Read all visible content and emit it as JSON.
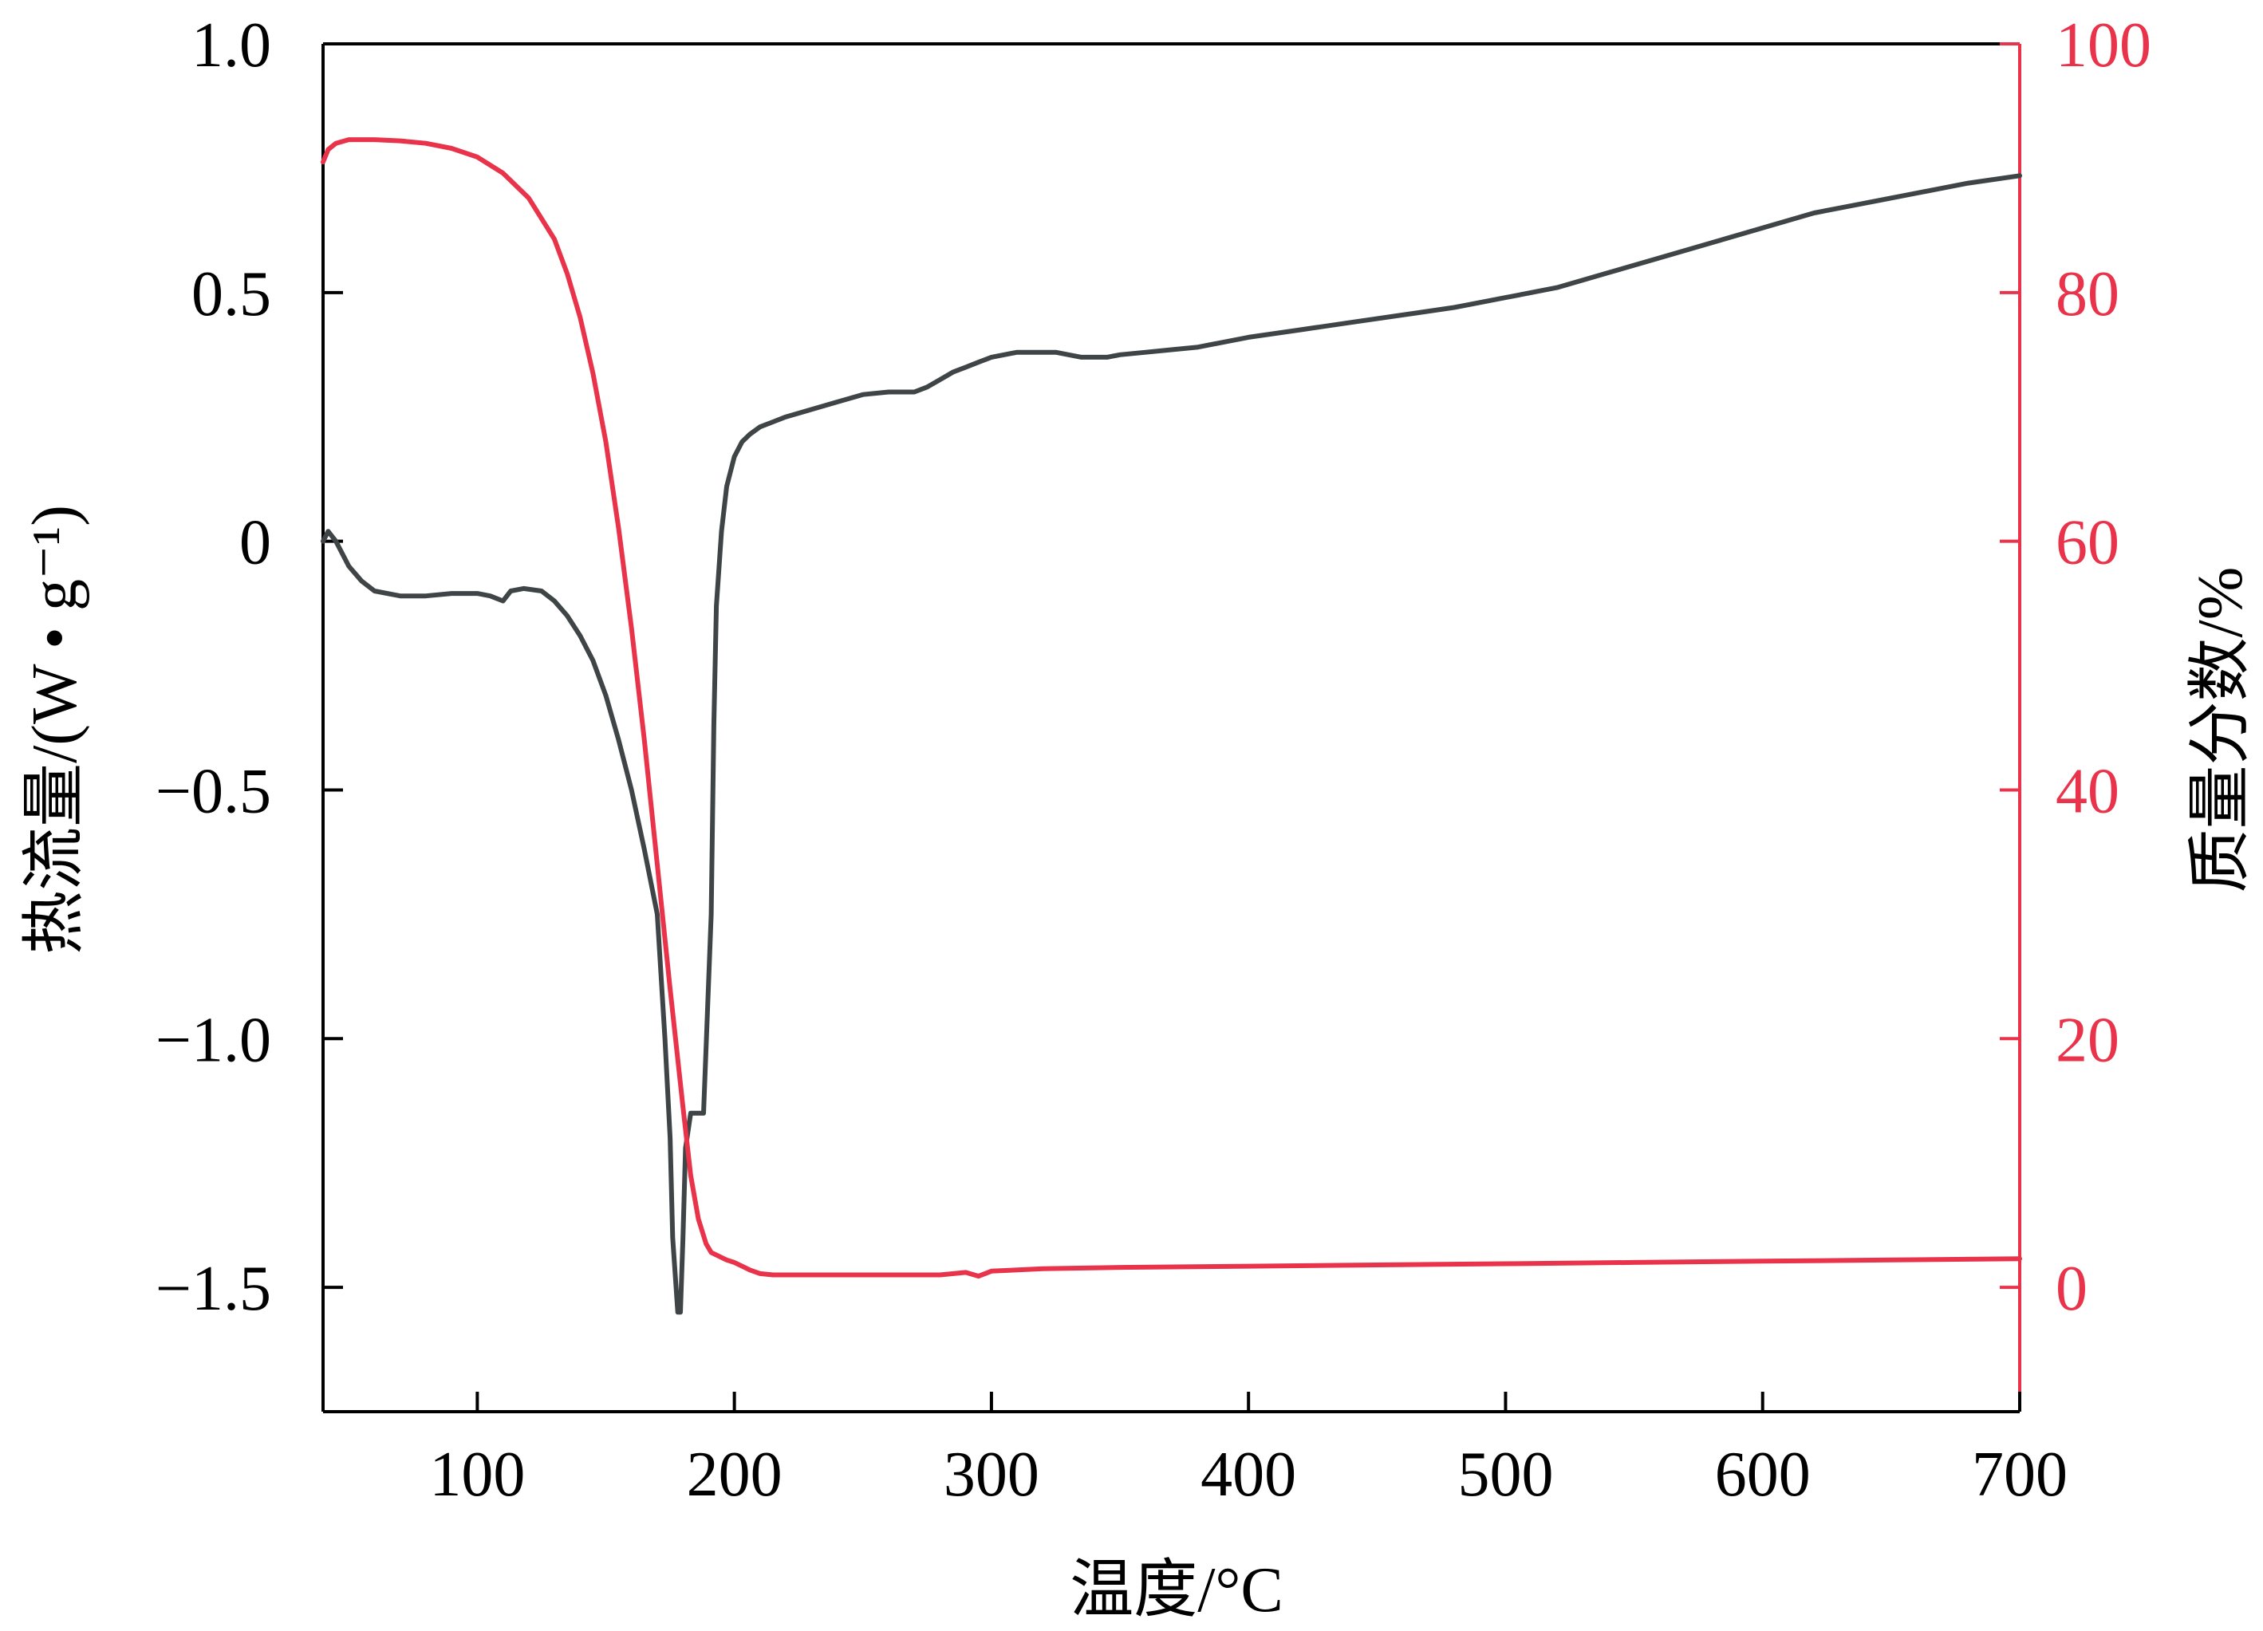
{
  "chart_data": {
    "type": "line",
    "title": "",
    "xlabel": "温度/°C",
    "ylabel_left": "热流量/(W • g⁻¹)",
    "ylabel_right": "质量分数/%",
    "xlim": [
      40,
      700
    ],
    "ylim_left": [
      -1.75,
      1.0
    ],
    "ylim_right": [
      -10,
      100
    ],
    "xticks": [
      100,
      200,
      300,
      400,
      500,
      600,
      700
    ],
    "xtick_labels": [
      "100",
      "200",
      "300",
      "400",
      "500",
      "600",
      "700"
    ],
    "yticks_left": [
      -1.5,
      -1.0,
      -0.5,
      0,
      0.5,
      1.0
    ],
    "ytick_labels_left": [
      "−1.5",
      "−1.0",
      "−0.5",
      "0",
      "0.5",
      "1.0"
    ],
    "yticks_right": [
      0,
      20,
      40,
      60,
      80,
      100
    ],
    "ytick_labels_right": [
      "0",
      "20",
      "40",
      "60",
      "80",
      "100"
    ],
    "grid": false,
    "colors": {
      "heat_flow": "#3f4446",
      "mass_fraction": "#e8334a",
      "axis": "#000000"
    },
    "series": [
      {
        "axis": "left",
        "color": "#3f4446",
        "x": [
          40,
          42,
          45,
          50,
          55,
          60,
          70,
          80,
          90,
          100,
          105,
          110,
          113,
          118,
          125,
          130,
          135,
          140,
          145,
          150,
          155,
          160,
          165,
          170,
          173,
          175,
          176,
          178,
          179,
          180,
          181,
          183,
          185,
          188,
          191,
          192,
          193,
          195,
          197,
          200,
          203,
          206,
          210,
          215,
          220,
          230,
          240,
          250,
          260,
          270,
          275,
          280,
          285,
          290,
          295,
          300,
          310,
          320,
          325,
          330,
          335,
          340,
          345,
          350,
          360,
          370,
          380,
          390,
          400,
          420,
          440,
          460,
          480,
          500,
          520,
          540,
          560,
          580,
          600,
          620,
          640,
          660,
          680,
          700
        ],
        "y": [
          0.0,
          0.02,
          0.0,
          -0.05,
          -0.08,
          -0.1,
          -0.11,
          -0.11,
          -0.105,
          -0.105,
          -0.11,
          -0.12,
          -0.1,
          -0.095,
          -0.1,
          -0.12,
          -0.15,
          -0.19,
          -0.24,
          -0.31,
          -0.4,
          -0.5,
          -0.62,
          -0.75,
          -1.0,
          -1.55,
          -1.55,
          -1.4,
          -1.22,
          -1.15,
          -1.15,
          -1.15,
          -0.75,
          -0.37,
          -0.13,
          0.02,
          0.11,
          0.17,
          0.2,
          0.215,
          0.225,
          0.235,
          0.25,
          0.262,
          0.275,
          0.285,
          0.29,
          0.3,
          0.31,
          0.325,
          0.34,
          0.35,
          0.36,
          0.37,
          0.38,
          0.37,
          0.37,
          0.37,
          0.37,
          0.37,
          0.37,
          0.375,
          0.38,
          0.385,
          0.39,
          0.398,
          0.405,
          0.415,
          0.425,
          0.44,
          0.455,
          0.47,
          0.49,
          0.51,
          0.54,
          0.57,
          0.6,
          0.63,
          0.66,
          0.68,
          0.7,
          0.72,
          0.735,
          0.735
        ],
        "y_fixed": [
          0.0,
          0.02,
          0.0,
          -0.05,
          -0.08,
          -0.1,
          -0.11,
          -0.11,
          -0.105,
          -0.105,
          -0.11,
          -0.12,
          -0.1,
          -0.095,
          -0.1,
          -0.12,
          -0.15,
          -0.19,
          -0.24,
          -0.31,
          -0.4,
          -0.5,
          -0.62,
          -0.75,
          -1.0,
          -1.2,
          -1.4,
          -1.55,
          -1.55,
          -1.4,
          -1.22,
          -1.15,
          -1.15,
          -1.15,
          -0.75,
          -0.37,
          -0.13,
          0.02,
          0.11,
          0.17,
          0.2,
          0.215,
          0.23,
          0.24,
          0.25,
          0.265,
          0.28,
          0.295,
          0.3,
          0.3,
          0.31,
          0.325,
          0.34,
          0.35,
          0.36,
          0.37,
          0.38,
          0.38,
          0.38,
          0.375,
          0.37,
          0.37,
          0.37,
          0.375,
          0.38,
          0.385,
          0.39,
          0.4,
          0.41,
          0.425,
          0.44,
          0.455,
          0.47,
          0.49,
          0.51,
          0.54,
          0.57,
          0.6,
          0.63,
          0.66,
          0.68,
          0.7,
          0.72,
          0.735
        ]
      },
      {
        "axis": "right",
        "color": "#e8334a",
        "x": [
          40,
          42,
          45,
          50,
          60,
          70,
          80,
          90,
          100,
          110,
          120,
          130,
          135,
          140,
          145,
          150,
          155,
          160,
          165,
          170,
          175,
          180,
          183,
          186,
          189,
          191,
          193,
          195,
          197,
          200,
          203,
          206,
          210,
          215,
          220,
          240,
          260,
          280,
          290,
          295,
          300,
          320,
          350,
          400,
          450,
          500,
          550,
          600,
          650,
          700
        ],
        "y": [
          90.5,
          91.5,
          92.0,
          92.3,
          92.3,
          92.2,
          92.0,
          91.6,
          90.9,
          89.6,
          87.6,
          84.3,
          81.5,
          78.0,
          73.5,
          68.0,
          61.0,
          53.0,
          44.0,
          34.0,
          24.0,
          14.5,
          9.0,
          5.5,
          3.5,
          2.8,
          2.6,
          2.4,
          2.2,
          2.0,
          1.7,
          1.4,
          1.1,
          1.0,
          1.0,
          1.0,
          1.0,
          1.0,
          1.2,
          0.9,
          1.3,
          1.5,
          1.6,
          1.7,
          1.8,
          1.9,
          2.0,
          2.1,
          2.2,
          2.3
        ]
      }
    ]
  }
}
